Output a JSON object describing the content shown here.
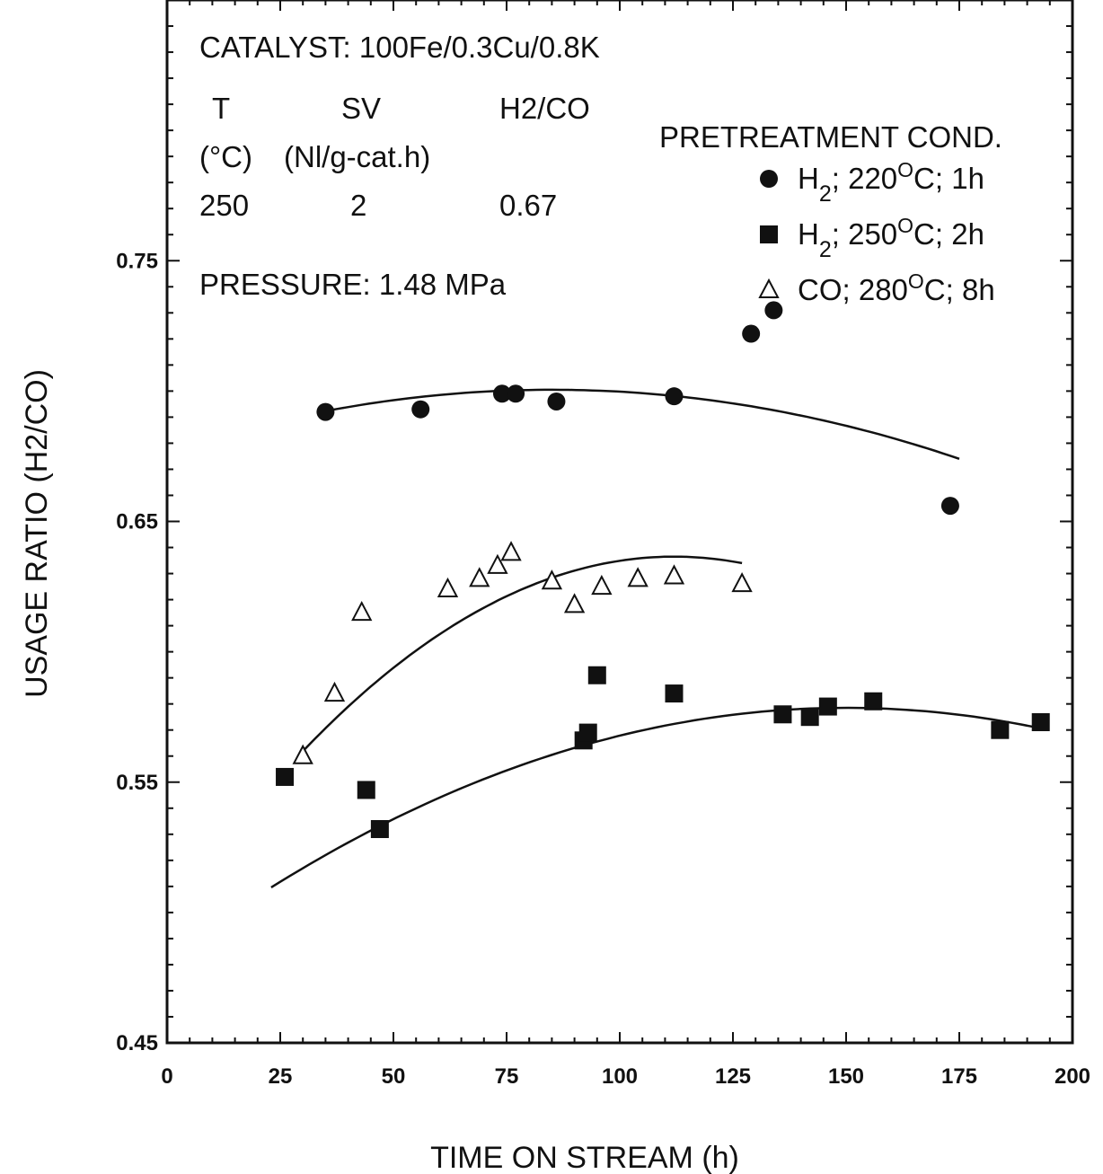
{
  "chart_data": {
    "type": "scatter",
    "xlabel": "TIME ON STREAM (h)",
    "ylabel": "USAGE RATIO (H2/CO)",
    "xlim": [
      0,
      200
    ],
    "ylim": [
      0.45,
      0.85
    ],
    "x_ticks": [
      "0",
      "25",
      "50",
      "75",
      "100",
      "125",
      "150",
      "175",
      "200"
    ],
    "y_ticks": [
      "0.45",
      "0.55",
      "0.65",
      "0.75"
    ],
    "grid": false,
    "legend_position": "top-right",
    "legend_title": "PRETREATMENT COND.",
    "annotations": {
      "catalyst": "CATALYST: 100Fe/0.3Cu/0.8K",
      "col_T": "T",
      "col_T_unit": "(°C)",
      "col_T_value": "250",
      "col_SV": "SV",
      "col_SV_unit": "(Nl/g-cat.h)",
      "col_SV_value": "2",
      "col_ratio": "H2/CO",
      "col_ratio_value": "0.67",
      "pressure": "PRESSURE: 1.48 MPa"
    },
    "series": [
      {
        "name": "H2; 220°C; 1h",
        "name_parts": {
          "pre": "H",
          "sub": "2",
          "mid": "; 220",
          "sup": "O",
          "post": "C; 1h"
        },
        "marker": "filled-circle",
        "x": [
          35,
          56,
          74,
          77,
          86,
          112,
          129,
          134,
          173
        ],
        "y": [
          0.692,
          0.693,
          0.699,
          0.699,
          0.696,
          0.698,
          0.722,
          0.731,
          0.656
        ],
        "fit": {
          "x": [
            34,
            175
          ],
          "a": 0.7005,
          "b": -3.27e-06,
          "c": 85
        }
      },
      {
        "name": "H2; 250°C; 2h",
        "name_parts": {
          "pre": "H",
          "sub": "2",
          "mid": "; 250",
          "sup": "O",
          "post": "C; 2h"
        },
        "marker": "filled-square",
        "x": [
          26,
          44,
          47,
          92,
          93,
          95,
          112,
          136,
          142,
          146,
          156,
          184,
          193
        ],
        "y": [
          0.552,
          0.547,
          0.532,
          0.566,
          0.569,
          0.591,
          0.584,
          0.576,
          0.575,
          0.579,
          0.581,
          0.57,
          0.573
        ],
        "fit": {
          "x": [
            23,
            193
          ],
          "a": 0.5785,
          "b": -4.27e-06,
          "c": 150
        }
      },
      {
        "name": "CO; 280°C; 8h",
        "name_parts": {
          "pre": "CO",
          "sub": "",
          "mid": "; 280",
          "sup": "O",
          "post": "C; 8h"
        },
        "marker": "open-triangle",
        "x": [
          30,
          37,
          43,
          62,
          69,
          73,
          76,
          85,
          90,
          96,
          104,
          112,
          127
        ],
        "y": [
          0.56,
          0.584,
          0.615,
          0.624,
          0.628,
          0.633,
          0.638,
          0.627,
          0.618,
          0.625,
          0.628,
          0.629,
          0.626
        ],
        "fit": {
          "x": [
            29,
            127
          ],
          "a": 0.6365,
          "b": -1.11e-05,
          "c": 112
        }
      }
    ]
  }
}
